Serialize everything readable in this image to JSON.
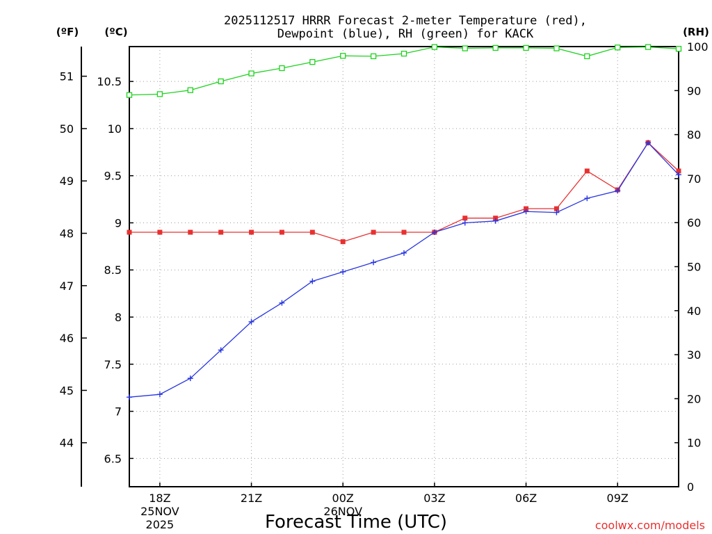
{
  "chart_data": {
    "type": "line",
    "title_line1": "2025112517 HRRR Forecast 2-meter Temperature (red),",
    "title_line2": "Dewpoint (blue), RH (green) for KACK",
    "unit_f": "(ºF)",
    "unit_c": "(ºC)",
    "unit_rh": "(RH)",
    "xlabel": "Forecast Time (UTC)",
    "credit": "coolwx.com/models",
    "x_hours": [
      17,
      18,
      19,
      20,
      21,
      22,
      23,
      24,
      25,
      26,
      27,
      28,
      29,
      30,
      31,
      32,
      33,
      34,
      35
    ],
    "x_range": [
      17,
      35
    ],
    "x_ticks": [
      {
        "hour": 18,
        "lines": [
          "18Z",
          "25NOV",
          "2025"
        ]
      },
      {
        "hour": 21,
        "lines": [
          "21Z"
        ]
      },
      {
        "hour": 24,
        "lines": [
          "00Z",
          "26NOV"
        ]
      },
      {
        "hour": 27,
        "lines": [
          "03Z"
        ]
      },
      {
        "hour": 30,
        "lines": [
          "06Z"
        ]
      },
      {
        "hour": 33,
        "lines": [
          "09Z"
        ]
      }
    ],
    "c_range": [
      6.2,
      10.87
    ],
    "c_ticks": [
      "6.5",
      "7",
      "7.5",
      "8",
      "8.5",
      "9",
      "9.5",
      "10",
      "10.5"
    ],
    "f_ticks": [
      "44",
      "45",
      "46",
      "47",
      "48",
      "49",
      "50",
      "51"
    ],
    "rh_range": [
      0,
      100
    ],
    "rh_ticks": [
      "0",
      "10",
      "20",
      "30",
      "40",
      "50",
      "60",
      "70",
      "80",
      "90",
      "100"
    ],
    "colors": {
      "temperature": "#e83030",
      "dewpoint": "#2836e0",
      "rh": "#1ed21e"
    },
    "series": [
      {
        "name": "Temperature",
        "axis": "C",
        "marker": "filled-square",
        "values": [
          8.9,
          8.9,
          8.9,
          8.9,
          8.9,
          8.9,
          8.9,
          8.8,
          8.9,
          8.9,
          8.9,
          9.05,
          9.05,
          9.15,
          9.15,
          9.55,
          9.35,
          9.85,
          9.55
        ]
      },
      {
        "name": "Dewpoint",
        "axis": "C",
        "marker": "plus",
        "values": [
          7.15,
          7.18,
          7.35,
          7.65,
          7.95,
          8.15,
          8.38,
          8.48,
          8.58,
          8.68,
          8.9,
          9.0,
          9.02,
          9.12,
          9.11,
          9.26,
          9.34,
          9.85,
          9.51
        ]
      },
      {
        "name": "RH",
        "axis": "RH",
        "marker": "open-square",
        "values": [
          89.0,
          89.2,
          90.1,
          92.1,
          93.9,
          95.1,
          96.5,
          97.9,
          97.8,
          98.4,
          99.9,
          99.6,
          99.7,
          99.7,
          99.6,
          97.8,
          99.8,
          99.9,
          99.5
        ]
      }
    ]
  }
}
